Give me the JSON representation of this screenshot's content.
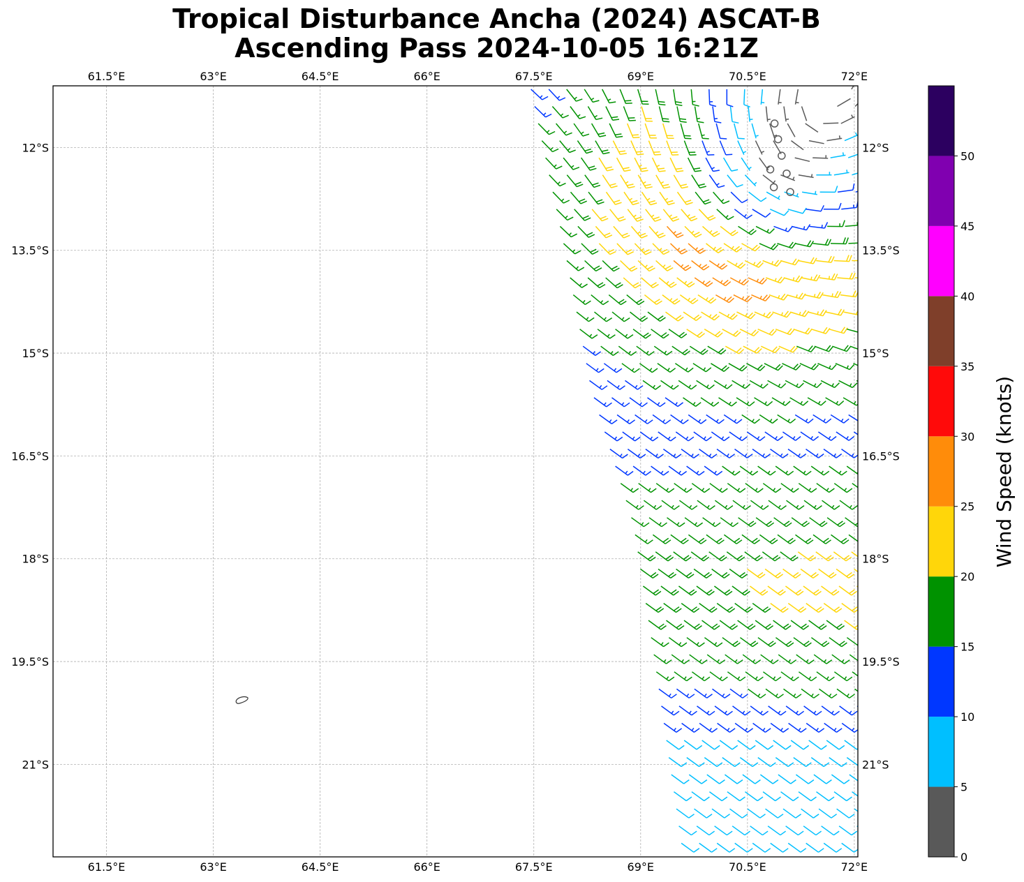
{
  "title_line1": "Tropical Disturbance Ancha (2024) ASCAT-B",
  "title_line2": "Ascending Pass 2024-10-05 16:21Z",
  "map": {
    "lon_range": [
      60.75,
      72.05
    ],
    "lat_range": [
      -22.35,
      -11.1
    ],
    "lon_ticks": [
      "61.5°E",
      "63°E",
      "64.5°E",
      "66°E",
      "67.5°E",
      "69°E",
      "70.5°E",
      "72°E"
    ],
    "lon_tick_values": [
      61.5,
      63,
      64.5,
      66,
      67.5,
      69,
      70.5,
      72
    ],
    "lat_ticks": [
      "12°S",
      "13.5°S",
      "15°S",
      "16.5°S",
      "18°S",
      "19.5°S",
      "21°S"
    ],
    "lat_tick_values": [
      -12,
      -13.5,
      -15,
      -16.5,
      -18,
      -19.5,
      -21
    ],
    "gridlines": true,
    "land_outline": "small island near 63.4°E 19.7°S"
  },
  "colorbar": {
    "label": "Wind Speed (knots)",
    "tick_labels": [
      "0",
      "5",
      "10",
      "15",
      "20",
      "25",
      "30",
      "35",
      "40",
      "45",
      "50"
    ],
    "bins": [
      {
        "range": [
          0,
          5
        ],
        "color": "#595959"
      },
      {
        "range": [
          5,
          10
        ],
        "color": "#00bfff"
      },
      {
        "range": [
          10,
          15
        ],
        "color": "#0037ff"
      },
      {
        "range": [
          15,
          20
        ],
        "color": "#009200"
      },
      {
        "range": [
          20,
          25
        ],
        "color": "#ffd60a"
      },
      {
        "range": [
          25,
          30
        ],
        "color": "#ff8c0a"
      },
      {
        "range": [
          30,
          35
        ],
        "color": "#ff0a0a"
      },
      {
        "range": [
          35,
          40
        ],
        "color": "#7f3f2a"
      },
      {
        "range": [
          40,
          45
        ],
        "color": "#ff00ff"
      },
      {
        "range": [
          45,
          50
        ],
        "color": "#8000b0"
      },
      {
        "range": [
          50,
          55
        ],
        "color": "#2c0060"
      }
    ]
  },
  "wind_field": {
    "description": "ASCAT wind barbs; circulation center near 70.9°E 12.2°S",
    "center": {
      "lon": 70.9,
      "lat": -12.2
    },
    "swath_west_edge": [
      [
        67.45,
        -11.1
      ],
      [
        67.9,
        -13.3
      ],
      [
        68.3,
        -15.5
      ],
      [
        68.9,
        -17.5
      ],
      [
        69.2,
        -19.5
      ],
      [
        69.6,
        -22.35
      ]
    ],
    "sample_spacing_deg": 0.25,
    "wind_units": "knots"
  }
}
